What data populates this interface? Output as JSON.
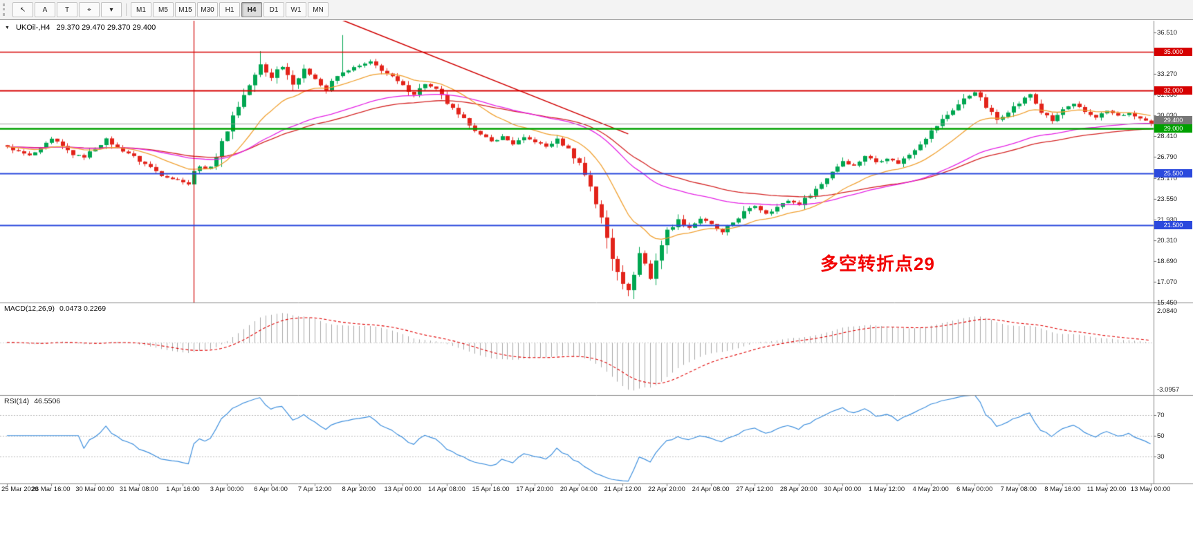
{
  "toolbar": {
    "buttons": [
      {
        "name": "cursor",
        "icon": "pointer-icon"
      },
      {
        "name": "annotation-tool",
        "label": "A"
      },
      {
        "name": "text-tool",
        "label": "T"
      },
      {
        "name": "crosshair",
        "icon": "crosshair-icon"
      },
      {
        "name": "tools-dropdown",
        "icon": "caret-down-icon"
      }
    ],
    "timeframes": [
      "M1",
      "M5",
      "M15",
      "M30",
      "H1",
      "H4",
      "D1",
      "W1",
      "MN"
    ],
    "active_timeframe": "H4"
  },
  "chart": {
    "collapse_icon": "▼",
    "symbol_label": "UKOil-,H4",
    "ohlc_text": "29.370 29.470 29.370 29.400",
    "annotation_text": "多空转折点29",
    "annotation_color": "#f20000",
    "price_ticks": [
      "36.510",
      "34.890",
      "33.270",
      "31.650",
      "30.030",
      "28.410",
      "26.790",
      "25.170",
      "23.550",
      "21.930",
      "20.310",
      "18.690",
      "17.070",
      "15.450"
    ],
    "hlines": [
      {
        "price": 35.0,
        "label": "35.000",
        "color": "#d60000",
        "width": 1.4
      },
      {
        "price": 32.0,
        "label": "32.000",
        "color": "#d60000",
        "width": 2
      },
      {
        "price": 29.0,
        "label": "29.000",
        "color": "#00a000",
        "width": 2.4
      },
      {
        "price": 25.5,
        "label": "25.500",
        "color": "#2b49dd",
        "width": 2
      },
      {
        "price": 21.5,
        "label": "21.500",
        "color": "#2b49dd",
        "width": 2
      }
    ],
    "current_price": {
      "value": 29.4,
      "label": "29.400",
      "color": "#777777",
      "line_color": "#9b9b9b"
    }
  },
  "macd_panel": {
    "label": "MACD(12,26,9)",
    "values": "0.0473 0.2269"
  },
  "rsi_panel": {
    "label": "RSI(14)",
    "value": "46.5506"
  },
  "time_labels": [
    "25 Mar 2020",
    "26 Mar 16:00",
    "30 Mar 00:00",
    "31 Mar 08:00",
    "1 Apr 16:00",
    "3 Apr 00:00",
    "6 Apr 04:00",
    "7 Apr 12:00",
    "8 Apr 20:00",
    "13 Apr 00:00",
    "14 Apr 08:00",
    "15 Apr 16:00",
    "17 Apr 20:00",
    "20 Apr 04:00",
    "21 Apr 12:00",
    "22 Apr 20:00",
    "24 Apr 08:00",
    "27 Apr 12:00",
    "28 Apr 20:00",
    "30 Apr 00:00",
    "1 May 12:00",
    "4 May 20:00",
    "6 May 00:00",
    "7 May 08:00",
    "8 May 16:00",
    "11 May 20:00",
    "13 May 00:00"
  ],
  "chart_data": {
    "type": "candlestick",
    "symbol": "UKOil-",
    "timeframe": "H4",
    "bars": 209,
    "last_close": 29.4,
    "up_color": "#00a651",
    "down_color": "#e2231a",
    "price_range": {
      "min": 15.46,
      "max": 37.42
    },
    "close_path": [
      [
        0,
        27.6
      ],
      [
        2,
        27.2
      ],
      [
        4,
        26.9
      ],
      [
        6,
        27.4
      ],
      [
        8,
        28.2
      ],
      [
        10,
        27.6
      ],
      [
        12,
        27.0
      ],
      [
        14,
        26.8
      ],
      [
        16,
        27.5
      ],
      [
        18,
        28.2
      ],
      [
        20,
        27.5
      ],
      [
        22,
        27.1
      ],
      [
        24,
        26.5
      ],
      [
        26,
        26.0
      ],
      [
        28,
        25.4
      ],
      [
        30,
        25.1
      ],
      [
        32,
        24.9
      ],
      [
        33,
        24.7
      ],
      [
        34,
        25.6
      ],
      [
        35,
        26.1
      ],
      [
        36,
        25.8
      ],
      [
        37,
        26.2
      ],
      [
        38,
        26.9
      ],
      [
        39,
        27.8
      ],
      [
        40,
        29.0
      ],
      [
        41,
        30.0
      ],
      [
        42,
        30.8
      ],
      [
        43,
        31.6
      ],
      [
        44,
        32.4
      ],
      [
        45,
        33.1
      ],
      [
        46,
        34.0
      ],
      [
        47,
        33.4
      ],
      [
        48,
        33.0
      ],
      [
        49,
        33.6
      ],
      [
        50,
        33.9
      ],
      [
        51,
        33.2
      ],
      [
        52,
        32.5
      ],
      [
        53,
        33.0
      ],
      [
        54,
        33.6
      ],
      [
        55,
        33.3
      ],
      [
        56,
        33.0
      ],
      [
        57,
        32.4
      ],
      [
        58,
        32.0
      ],
      [
        59,
        32.6
      ],
      [
        60,
        33.1
      ],
      [
        62,
        33.6
      ],
      [
        64,
        33.9
      ],
      [
        66,
        34.2
      ],
      [
        68,
        33.6
      ],
      [
        70,
        33.0
      ],
      [
        72,
        32.3
      ],
      [
        74,
        31.7
      ],
      [
        76,
        32.5
      ],
      [
        78,
        32.0
      ],
      [
        80,
        31.0
      ],
      [
        82,
        30.0
      ],
      [
        84,
        29.4
      ],
      [
        86,
        28.5
      ],
      [
        88,
        28.0
      ],
      [
        90,
        28.4
      ],
      [
        92,
        27.8
      ],
      [
        94,
        28.3
      ],
      [
        96,
        28.0
      ],
      [
        98,
        27.6
      ],
      [
        100,
        28.2
      ],
      [
        102,
        27.4
      ],
      [
        104,
        26.3
      ],
      [
        106,
        24.6
      ],
      [
        108,
        21.9
      ],
      [
        110,
        19.0
      ],
      [
        112,
        17.1
      ],
      [
        113,
        16.3
      ],
      [
        114,
        17.9
      ],
      [
        115,
        19.3
      ],
      [
        116,
        18.5
      ],
      [
        117,
        17.3
      ],
      [
        118,
        18.9
      ],
      [
        119,
        20.0
      ],
      [
        120,
        21.0
      ],
      [
        122,
        21.9
      ],
      [
        124,
        21.3
      ],
      [
        126,
        22.0
      ],
      [
        128,
        21.5
      ],
      [
        130,
        20.9
      ],
      [
        132,
        21.7
      ],
      [
        134,
        22.5
      ],
      [
        136,
        23.0
      ],
      [
        138,
        22.4
      ],
      [
        140,
        22.9
      ],
      [
        142,
        23.4
      ],
      [
        144,
        23.1
      ],
      [
        146,
        23.9
      ],
      [
        148,
        24.7
      ],
      [
        150,
        25.7
      ],
      [
        152,
        26.5
      ],
      [
        154,
        26.1
      ],
      [
        156,
        26.9
      ],
      [
        158,
        26.4
      ],
      [
        160,
        26.7
      ],
      [
        162,
        26.3
      ],
      [
        164,
        27.0
      ],
      [
        166,
        27.9
      ],
      [
        168,
        28.8
      ],
      [
        170,
        29.7
      ],
      [
        172,
        30.5
      ],
      [
        174,
        31.3
      ],
      [
        176,
        31.9
      ],
      [
        178,
        30.7
      ],
      [
        180,
        29.7
      ],
      [
        182,
        30.4
      ],
      [
        184,
        31.0
      ],
      [
        186,
        31.7
      ],
      [
        188,
        30.3
      ],
      [
        190,
        29.6
      ],
      [
        192,
        30.5
      ],
      [
        194,
        30.9
      ],
      [
        196,
        30.3
      ],
      [
        198,
        29.9
      ],
      [
        200,
        30.4
      ],
      [
        202,
        30.0
      ],
      [
        204,
        30.2
      ],
      [
        206,
        29.8
      ],
      [
        208,
        29.4
      ]
    ],
    "wick_overrides": [
      {
        "bar": 34,
        "high": 29.45
      },
      {
        "bar": 46,
        "high": 35.05
      },
      {
        "bar": 61,
        "high": 36.3
      },
      {
        "bar": 113,
        "low": 15.95
      }
    ],
    "vline_bar": 34,
    "trendline": {
      "from": {
        "bar": 52,
        "price": 39.0
      },
      "to": {
        "bar": 113,
        "price": 28.6
      }
    },
    "moving_averages": [
      {
        "name": "fast-ma",
        "period": 16,
        "color": "#f0a132"
      },
      {
        "name": "medium-ma",
        "period": 46,
        "color": "#e421e4"
      },
      {
        "name": "slow-ma",
        "period": 60,
        "color": "#d42525"
      }
    ],
    "macd": {
      "fast": 12,
      "slow": 26,
      "signal": 9,
      "axis_max": "2.0840",
      "axis_min": "-3.0957",
      "hist_color": "#a8a8a8",
      "signal_color": "#e00000",
      "range": {
        "min": -3.46,
        "max": 2.62
      }
    },
    "rsi": {
      "period": 14,
      "levels": [
        70,
        50,
        30
      ],
      "color": "#3e8fdd",
      "range": {
        "min": 4,
        "max": 89
      }
    }
  }
}
